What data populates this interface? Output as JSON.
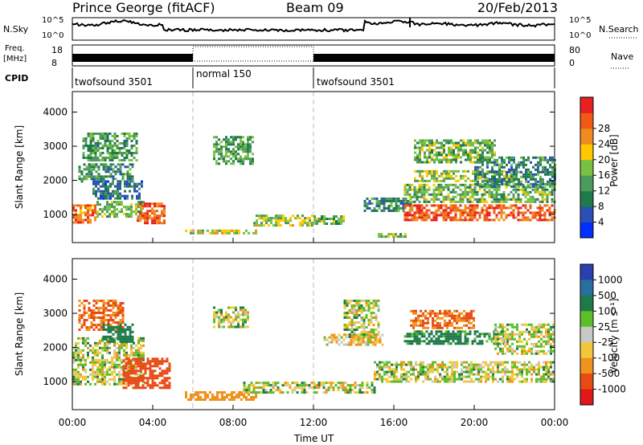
{
  "header": {
    "title": "Prince George (fitACF)",
    "beam": "Beam 09",
    "date": "20/Feb/2013"
  },
  "summary_panel": {
    "nsky_label": "N.Sky",
    "nsky_ticks": [
      "10^5",
      "10^0"
    ],
    "nsearch_label": "N.Search",
    "freq_label": "Freq.",
    "freq_unit": "[MHz]",
    "freq_ticks": [
      "18",
      "8"
    ],
    "nave_label": "Nave",
    "nave_ticks": [
      "80",
      "0"
    ],
    "cpid_label": "CPID",
    "cpid_segments": [
      {
        "label": "twofsound 3501",
        "start_h": 0,
        "end_h": 6
      },
      {
        "label": "normal 150",
        "start_h": 6,
        "end_h": 12
      },
      {
        "label": "twofsound 3501",
        "start_h": 12,
        "end_h": 24
      }
    ]
  },
  "axes": {
    "ylabel": "Slant Range [km]",
    "xlabel": "Time UT",
    "yticks": [
      "1000",
      "2000",
      "3000",
      "4000"
    ],
    "xticks": [
      "00:00",
      "04:00",
      "08:00",
      "12:00",
      "16:00",
      "20:00",
      "00:00"
    ]
  },
  "colorbars": {
    "power": {
      "label": "Power [dB]",
      "ticks": [
        "4",
        "8",
        "12",
        "16",
        "20",
        "24",
        "28"
      ],
      "colors": [
        "#0030ff",
        "#2a4fb5",
        "#1f7a4a",
        "#4c9a5e",
        "#7ac043",
        "#ffc800",
        "#f08c1e",
        "#f05a14",
        "#e82020"
      ]
    },
    "velocity": {
      "label": "Velocity [m s⁻¹]",
      "ticks": [
        "1000",
        "500",
        "100",
        "25",
        "-25",
        "-100",
        "-500",
        "-1000"
      ],
      "colors": [
        "#2a3fb0",
        "#2a6fa0",
        "#1f7a4a",
        "#5cbf2a",
        "#c8c8c4",
        "#f2c83a",
        "#f0921e",
        "#e84a14",
        "#e01818"
      ]
    }
  },
  "chart_data": [
    {
      "type": "heatmap",
      "name": "power",
      "xlabel": "Time UT",
      "ylabel": "Slant Range [km]",
      "xlim": [
        0,
        24
      ],
      "ylim": [
        180,
        4600
      ],
      "colorbar_label": "Power [dB]",
      "blobs": [
        {
          "t0": 0.0,
          "t1": 1.2,
          "r0": 750,
          "r1": 1300,
          "p": 24
        },
        {
          "t0": 1.2,
          "t1": 3.5,
          "r0": 950,
          "r1": 1400,
          "p": 14
        },
        {
          "t0": 3.2,
          "t1": 4.6,
          "r0": 750,
          "r1": 1350,
          "p": 26
        },
        {
          "t0": 0.3,
          "t1": 3.0,
          "r0": 2000,
          "r1": 2500,
          "p": 10
        },
        {
          "t0": 0.5,
          "t1": 3.2,
          "r0": 2600,
          "r1": 3400,
          "p": 12
        },
        {
          "t0": 1.0,
          "t1": 3.5,
          "r0": 1500,
          "r1": 2000,
          "p": 8
        },
        {
          "t0": 7.0,
          "t1": 9.0,
          "r0": 2500,
          "r1": 3300,
          "p": 12
        },
        {
          "t0": 5.6,
          "t1": 9.2,
          "r0": 420,
          "r1": 560,
          "p": 18
        },
        {
          "t0": 9.0,
          "t1": 12.0,
          "r0": 700,
          "r1": 1000,
          "p": 16
        },
        {
          "t0": 12.0,
          "t1": 13.5,
          "r0": 700,
          "r1": 980,
          "p": 14
        },
        {
          "t0": 14.5,
          "t1": 16.8,
          "r0": 1100,
          "r1": 1500,
          "p": 10
        },
        {
          "t0": 15.2,
          "t1": 16.6,
          "r0": 320,
          "r1": 460,
          "p": 14
        },
        {
          "t0": 16.5,
          "t1": 24.0,
          "r0": 850,
          "r1": 1300,
          "p": 26
        },
        {
          "t0": 16.5,
          "t1": 24.0,
          "r0": 1350,
          "r1": 1900,
          "p": 14
        },
        {
          "t0": 17.0,
          "t1": 22.0,
          "r0": 2000,
          "r1": 2300,
          "p": 16
        },
        {
          "t0": 17.0,
          "t1": 21.0,
          "r0": 2500,
          "r1": 3200,
          "p": 14
        },
        {
          "t0": 20.0,
          "t1": 24.0,
          "r0": 1800,
          "r1": 2700,
          "p": 10
        }
      ]
    },
    {
      "type": "heatmap",
      "name": "velocity",
      "xlabel": "Time UT",
      "ylabel": "Slant Range [km]",
      "xlim": [
        0,
        24
      ],
      "ylim": [
        180,
        4600
      ],
      "colorbar_label": "Velocity [m s⁻¹]",
      "blobs": [
        {
          "t0": 0.0,
          "t1": 3.5,
          "r0": 900,
          "r1": 2300,
          "v": 0
        },
        {
          "t0": 0.3,
          "t1": 2.5,
          "r0": 2500,
          "r1": 3400,
          "v": -300
        },
        {
          "t0": 1.5,
          "t1": 3.0,
          "r0": 2200,
          "r1": 2700,
          "v": 150
        },
        {
          "t0": 2.5,
          "t1": 4.8,
          "r0": 800,
          "r1": 1700,
          "v": -500
        },
        {
          "t0": 7.0,
          "t1": 8.8,
          "r0": 2600,
          "r1": 3200,
          "v": 0
        },
        {
          "t0": 5.6,
          "t1": 9.2,
          "r0": 500,
          "r1": 720,
          "v": -150
        },
        {
          "t0": 8.5,
          "t1": 15.0,
          "r0": 700,
          "r1": 1000,
          "v": 0
        },
        {
          "t0": 12.5,
          "t1": 15.5,
          "r0": 2100,
          "r1": 2400,
          "v": -50
        },
        {
          "t0": 13.5,
          "t1": 15.2,
          "r0": 2300,
          "r1": 3400,
          "v": 0
        },
        {
          "t0": 15.0,
          "t1": 24.0,
          "r0": 1000,
          "r1": 1600,
          "v": 0
        },
        {
          "t0": 16.5,
          "t1": 21.5,
          "r0": 2100,
          "r1": 2500,
          "v": 120
        },
        {
          "t0": 16.8,
          "t1": 20.0,
          "r0": 2600,
          "r1": 3100,
          "v": -300
        },
        {
          "t0": 21.0,
          "t1": 24.0,
          "r0": 1800,
          "r1": 2700,
          "v": 0
        }
      ]
    }
  ]
}
